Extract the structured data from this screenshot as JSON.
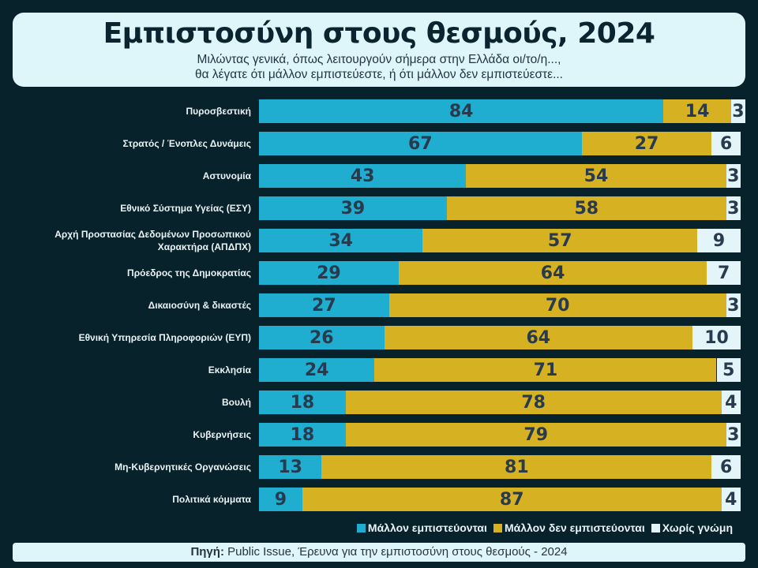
{
  "header": {
    "title": "Εμπιστοσύνη στους θεσμούς, 2024",
    "subtitle_line1": "Μιλώντας γενικά, όπως λειτουργούν σήμερα στην Ελλάδα οι/το/η...,",
    "subtitle_line2": "θα λέγατε  ότι μάλλον εμπιστεύεστε, ή ότι μάλλον δεν εμπιστεύεστε..."
  },
  "chart_data": {
    "type": "bar",
    "orientation": "horizontal",
    "stacked": true,
    "categories": [
      "Πυροσβεστική",
      "Στρατός / Ένοπλες Δυνάμεις",
      "Αστυνομία",
      "Εθνικό Σύστημα Υγείας (ΕΣΥ)",
      "Αρχή Προστασίας Δεδομένων Προσωπικού Χαρακτήρα (ΑΠΔΠΧ)",
      "Πρόεδρος της Δημοκρατίας",
      "Δικαιοσύνη & δικαστές",
      "Εθνική Υπηρεσία Πληροφοριών (ΕΥΠ)",
      "Εκκλησία",
      "Βουλή",
      "Κυβερνήσεις",
      "Μη-Κυβερνητικές Οργανώσεις",
      "Πολιτικά κόμματα"
    ],
    "series": [
      {
        "name": "Μάλλον εμπιστεύονται",
        "color": "#1fadd0",
        "values": [
          84,
          67,
          43,
          39,
          34,
          29,
          27,
          26,
          24,
          18,
          18,
          13,
          9
        ]
      },
      {
        "name": "Μάλλον δεν εμπιστεύονται",
        "color": "#d6b122",
        "values": [
          14,
          27,
          54,
          58,
          57,
          64,
          70,
          64,
          71,
          78,
          79,
          81,
          87
        ]
      },
      {
        "name": "Χωρίς γνώμη",
        "color": "#e4f5f9",
        "values": [
          3,
          6,
          3,
          3,
          9,
          7,
          3,
          10,
          5,
          4,
          3,
          6,
          4
        ]
      }
    ],
    "data_labels": true,
    "grid": false,
    "legend": "bottom-right"
  },
  "footer": {
    "source_label": "Πηγή:",
    "source_text": " Public Issue, Έρευνα για την εμπιστοσύνη στους θεσμούς - 2024"
  }
}
